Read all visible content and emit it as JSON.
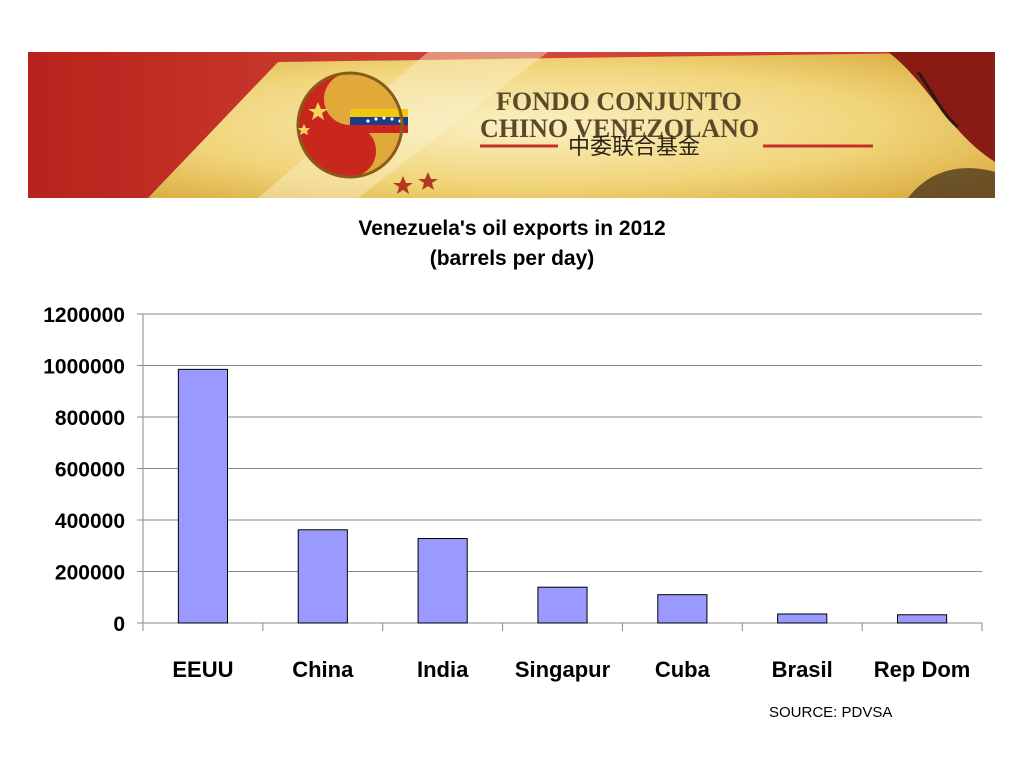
{
  "banner": {
    "line1": "FONDO CONJUNTO",
    "line2": "CHINO VENEZOLANO",
    "chinese": "中委联合基金",
    "colors": {
      "red": "#c4302a",
      "gold": "#e9c75a",
      "cream": "#f3e3a6"
    }
  },
  "source": "SOURCE: PDVSA",
  "chart_data": {
    "type": "bar",
    "title": "Venezuela's oil exports in 2012",
    "subtitle": "(barrels per day)",
    "xlabel": "",
    "ylabel": "",
    "categories": [
      "EEUU",
      "China",
      "India",
      "Singapur",
      "Cuba",
      "Brasil",
      "Rep Dom"
    ],
    "values": [
      985000,
      362000,
      328000,
      139000,
      110000,
      35000,
      32000
    ],
    "ylim": [
      0,
      1200000
    ],
    "yticks": [
      "0",
      "200000",
      "400000",
      "600000",
      "800000",
      "1000000",
      "1200000"
    ],
    "grid": true,
    "legend": "none",
    "bar_color": "#9999ff",
    "bar_stroke": "#000000"
  }
}
